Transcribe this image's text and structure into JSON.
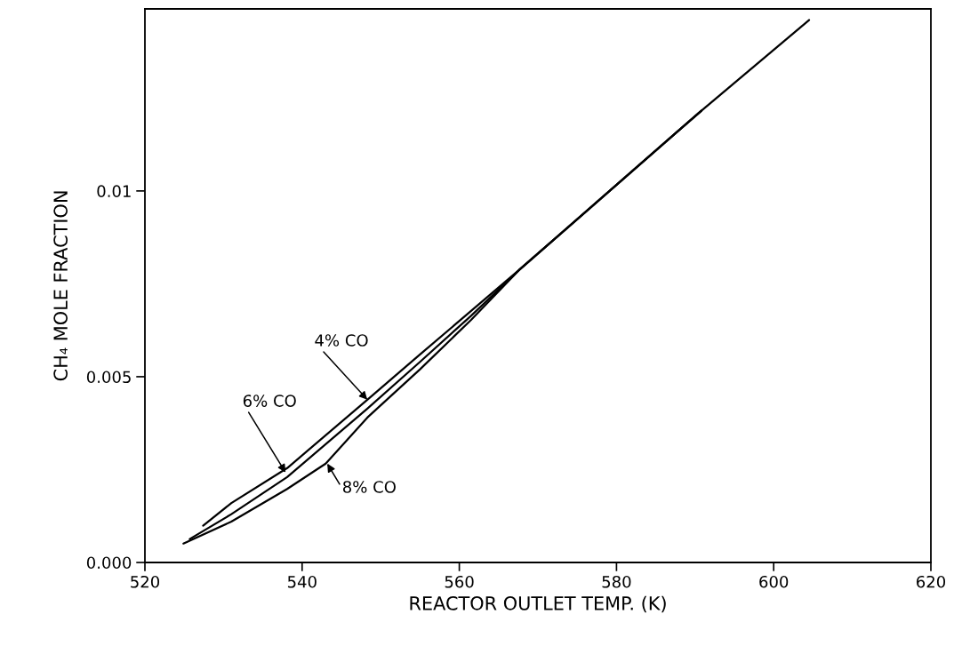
{
  "chart_data": {
    "type": "line",
    "xlabel": "REACTOR OUTLET TEMP. (K)",
    "ylabel": "CH₄ MOLE FRACTION",
    "xlim": [
      520,
      620
    ],
    "xticks": [
      520,
      540,
      560,
      580,
      600,
      620
    ],
    "ylim": [
      0,
      0.0149
    ],
    "yticks": [
      {
        "value": 0,
        "label": "0.000"
      },
      {
        "value": 0.005,
        "label": "0.005"
      },
      {
        "value": 0.01,
        "label": "0.01"
      }
    ],
    "grid": false,
    "legend": false,
    "marker": "none",
    "line_style": "solid",
    "series": [
      {
        "color": "#000000",
        "x": [
          527.4,
          531,
          538.1,
          548.3,
          555,
          561.5,
          567.6,
          590.8,
          604.5
        ],
        "values": [
          0.00099,
          0.0016,
          0.00254,
          0.00438,
          0.0056,
          0.00677,
          0.00787,
          0.01216,
          0.0146
        ]
      },
      {
        "color": "#000000",
        "x": [
          525.7,
          531,
          538.1,
          548.3,
          555,
          561.5,
          567.6,
          590.8
        ],
        "values": [
          0.00063,
          0.0013,
          0.0023,
          0.00414,
          0.0054,
          0.00664,
          0.00787,
          0.01216
        ]
      },
      {
        "color": "#000000",
        "x": [
          524.9,
          531,
          538.1,
          543.0,
          548.3,
          555,
          561.5,
          567.6,
          590.8
        ],
        "values": [
          0.00051,
          0.0011,
          0.00198,
          0.00266,
          0.0039,
          0.0052,
          0.00653,
          0.00787,
          0.01216
        ]
      }
    ],
    "annotations": [
      {
        "text": "4% CO",
        "x": 548.3,
        "y": 0.00438
      },
      {
        "text": "6% CO",
        "x": 537.9,
        "y": 0.00242
      },
      {
        "text": "8% CO",
        "x": 543.2,
        "y": 0.00266
      }
    ]
  }
}
